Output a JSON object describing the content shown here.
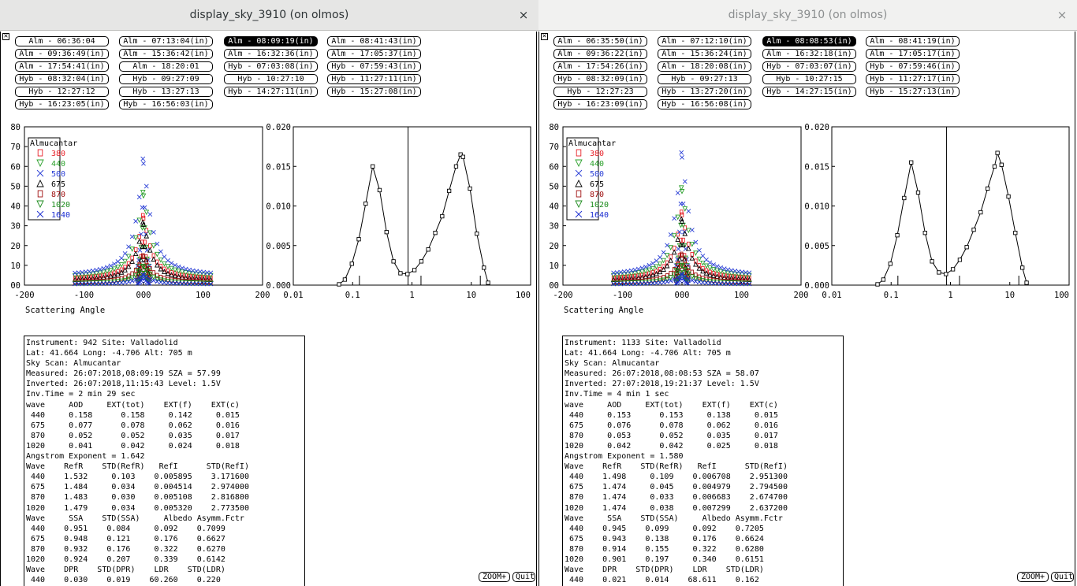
{
  "windows": [
    {
      "title": "display_sky_3910 (on olmos)",
      "close_glyph": "×",
      "scan_buttons": [
        [
          "Alm - 06:36:04",
          "Alm - 07:13:04(in)",
          "Alm - 08:09:19(in)",
          "Alm - 08:41:43(in)"
        ],
        [
          "Alm - 09:36:49(in)",
          "Alm - 15:36:42(in)",
          "Alm - 16:32:36(in)",
          "Alm - 17:05:37(in)"
        ],
        [
          "Alm - 17:54:41(in)",
          "Alm - 18:20:01",
          "Hyb - 07:03:08(in)",
          "Hyb - 07:59:43(in)"
        ],
        [
          "Hyb - 08:32:04(in)",
          "Hyb - 09:27:09",
          "Hyb - 10:27:10",
          "Hyb - 11:27:11(in)"
        ],
        [
          "Hyb - 12:27:12",
          "Hyb - 13:27:13",
          "Hyb - 14:27:11(in)",
          "Hyb - 15:27:08(in)"
        ],
        [
          "Hyb - 16:23:05(in)",
          "Hyb - 16:56:03(in)"
        ]
      ],
      "selected": "Alm - 08:09:19(in)",
      "info_lines": [
        "Instrument: 942 Site: Valladolid",
        "Lat: 41.664 Long: -4.706 Alt: 705 m",
        "Sky Scan: Almucantar",
        "Measured: 26:07:2018,08:09:19 SZA = 57.99",
        "Inverted: 26:07:2018,11:15:43 Level: 1.5V",
        "Inv.Time = 2 min 29 sec",
        "wave     AOD     EXT(tot)    EXT(f)    EXT(c)",
        " 440     0.158      0.158     0.142     0.015",
        " 675     0.077      0.078     0.062     0.016",
        " 870     0.052      0.052     0.035     0.017",
        "1020     0.041      0.042     0.024     0.018",
        "Angstrom Exponent = 1.642",
        "Wave    RefR    STD(RefR)   RefI      STD(RefI)",
        " 440    1.532     0.103    0.005895    3.171600",
        " 675    1.484     0.034    0.004514    2.974000",
        " 870    1.483     0.030    0.005108    2.816800",
        "1020    1.479     0.034    0.005320    2.773500",
        "Wave     SSA    STD(SSA)     Albedo Asymm.Fctr",
        " 440    0.951    0.084     0.092    0.7099",
        " 675    0.948    0.121     0.176    0.6627",
        " 870    0.932    0.176     0.322    0.6270",
        "1020    0.924    0.207     0.339    0.6142",
        "Wave    DPR    STD(DPR)    LDR    STD(LDR)",
        " 440    0.030    0.019    60.260    0.220"
      ],
      "size_dist": {
        "points": [
          [
            0.059,
            0.0001
          ],
          [
            0.074,
            0.0007
          ],
          [
            0.097,
            0.0027
          ],
          [
            0.127,
            0.0058
          ],
          [
            0.166,
            0.0103
          ],
          [
            0.218,
            0.015
          ],
          [
            0.285,
            0.012
          ],
          [
            0.373,
            0.0067
          ],
          [
            0.489,
            0.003
          ],
          [
            0.64,
            0.0015
          ],
          [
            0.84,
            0.0014
          ],
          [
            1.1,
            0.0019
          ],
          [
            1.44,
            0.003
          ],
          [
            1.88,
            0.0045
          ],
          [
            2.47,
            0.0066
          ],
          [
            3.23,
            0.0087
          ],
          [
            4.23,
            0.0119
          ],
          [
            5.54,
            0.015
          ],
          [
            6.6,
            0.0165
          ],
          [
            7.26,
            0.0162
          ],
          [
            9.5,
            0.0122
          ],
          [
            12.4,
            0.0065
          ],
          [
            16.3,
            0.0022
          ],
          [
            19.2,
            0.0003
          ]
        ],
        "radius_line": 0.86,
        "marks": [
          0.13,
          1.42,
          14.2
        ]
      }
    },
    {
      "title": "display_sky_3910 (on olmos)",
      "close_glyph": "×",
      "scan_buttons": [
        [
          "Alm - 06:35:50(in)",
          "Alm - 07:12:10(in)",
          "Alm - 08:08:53(in)",
          "Alm - 08:41:19(in)"
        ],
        [
          "Alm - 09:36:22(in)",
          "Alm - 15:36:24(in)",
          "Alm - 16:32:18(in)",
          "Alm - 17:05:17(in)"
        ],
        [
          "Alm - 17:54:26(in)",
          "Alm - 18:20:08(in)",
          "Hyb - 07:03:07(in)",
          "Hyb - 07:59:46(in)"
        ],
        [
          "Hyb - 08:32:09(in)",
          "Hyb - 09:27:13",
          "Hyb - 10:27:15",
          "Hyb - 11:27:17(in)"
        ],
        [
          "Hyb - 12:27:23",
          "Hyb - 13:27:20(in)",
          "Hyb - 14:27:15(in)",
          "Hyb - 15:27:13(in)"
        ],
        [
          "Hyb - 16:23:09(in)",
          "Hyb - 16:56:08(in)"
        ]
      ],
      "selected": "Alm - 08:08:53(in)",
      "info_lines": [
        "Instrument: 1133 Site: Valladolid",
        "Lat: 41.664 Long: -4.706 Alt: 705 m",
        "Sky Scan: Almucantar",
        "Measured: 26:07:2018,08:08:53 SZA = 58.07",
        "Inverted: 27:07:2018,19:21:37 Level: 1.5V",
        "Inv.Time = 4 min 1 sec",
        "wave     AOD     EXT(tot)    EXT(f)    EXT(c)",
        " 440     0.153      0.153     0.138     0.015",
        " 675     0.076      0.078     0.062     0.016",
        " 870     0.053      0.052     0.035     0.017",
        "1020     0.042      0.042     0.025     0.018",
        "Angstrom Exponent = 1.580",
        "Wave    RefR    STD(RefR)   RefI      STD(RefI)",
        " 440    1.498     0.109    0.006708    2.951300",
        " 675    1.474     0.045    0.004979    2.794500",
        " 870    1.474     0.033    0.006683    2.674700",
        "1020    1.474     0.038    0.007299    2.637200",
        "Wave     SSA    STD(SSA)     Albedo Asymm.Fctr",
        " 440    0.945    0.099     0.092    0.7205",
        " 675    0.943    0.138     0.176    0.6624",
        " 870    0.914    0.155     0.322    0.6280",
        "1020    0.901    0.197     0.340    0.6151",
        "Wave    DPR    STD(DPR)    LDR    STD(LDR)",
        " 440    0.021    0.014    68.611    0.162"
      ],
      "size_dist": {
        "points": [
          [
            0.059,
            0.0001
          ],
          [
            0.074,
            0.0007
          ],
          [
            0.097,
            0.0027
          ],
          [
            0.127,
            0.0063
          ],
          [
            0.166,
            0.011
          ],
          [
            0.218,
            0.0155
          ],
          [
            0.285,
            0.0117
          ],
          [
            0.373,
            0.0066
          ],
          [
            0.489,
            0.003
          ],
          [
            0.64,
            0.0016
          ],
          [
            0.84,
            0.0014
          ],
          [
            1.1,
            0.002
          ],
          [
            1.44,
            0.0032
          ],
          [
            1.88,
            0.0048
          ],
          [
            2.47,
            0.007
          ],
          [
            3.23,
            0.0092
          ],
          [
            4.23,
            0.0122
          ],
          [
            5.54,
            0.015
          ],
          [
            6.2,
            0.0167
          ],
          [
            7.26,
            0.0152
          ],
          [
            9.5,
            0.0112
          ],
          [
            12.4,
            0.0066
          ],
          [
            16.3,
            0.0022
          ],
          [
            19.2,
            0.0003
          ]
        ],
        "radius_line": 0.86,
        "marks": [
          0.13,
          1.42,
          14.2
        ]
      }
    }
  ],
  "scattering_label": "Scattering Angle",
  "legend_title": "Almucantar",
  "legend": [
    {
      "label": "380",
      "color": "#e8222a",
      "marker": "rect"
    },
    {
      "label": "440",
      "color": "#2aa02a",
      "marker": "tri-down"
    },
    {
      "label": "500",
      "color": "#2a3fd6",
      "marker": "x"
    },
    {
      "label": "675",
      "color": "#000000",
      "marker": "tri-up"
    },
    {
      "label": "870",
      "color": "#a01010",
      "marker": "rect"
    },
    {
      "label": "1020",
      "color": "#1a8a1a",
      "marker": "tri-down"
    },
    {
      "label": "1640",
      "color": "#1a2cd0",
      "marker": "x"
    }
  ],
  "sky_axes": {
    "xticks": [
      "-200",
      "-100",
      "000",
      "100",
      "200"
    ],
    "yticks": [
      "00",
      "10",
      "20",
      "30",
      "40",
      "50",
      "60",
      "70",
      "80"
    ],
    "xlim": [
      -200,
      200
    ],
    "ylim": [
      0,
      80
    ]
  },
  "size_axes": {
    "xticks": [
      "0.01",
      "0.1",
      "1",
      "10",
      "100"
    ],
    "yticks": [
      "0.000",
      "0.005",
      "0.010",
      "0.015",
      "0.020"
    ],
    "ylim": [
      0,
      0.02
    ]
  },
  "buttons": {
    "zoom": "ZOOM+",
    "quit": "Quit"
  }
}
